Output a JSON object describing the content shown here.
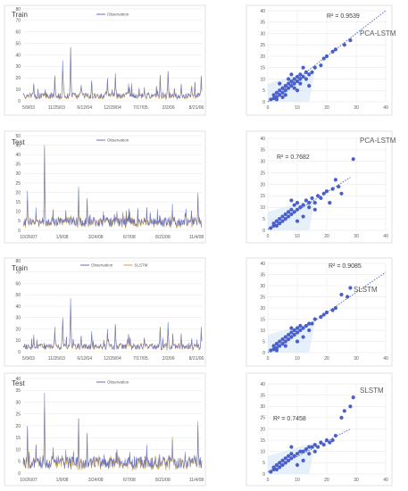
{
  "colors": {
    "observation": "#5b6fd6",
    "model": "#d9a23a",
    "scatter": "#4a5fc9",
    "trend": "#4a5fc9",
    "frame": "#d9d9d9",
    "grid": "#e6e6e6"
  },
  "chart_data": [
    {
      "type": "line",
      "title": "Train",
      "legend": [
        "Observation"
      ],
      "x_tick_labels": [
        "5/9/03",
        "11/25/03",
        "6/12/04",
        "12/29/04",
        "7/17/05",
        "2/2/06",
        "8/21/06"
      ],
      "y_ticks": [
        0,
        10,
        20,
        30,
        40,
        50,
        60,
        70,
        80
      ],
      "ylim": [
        0,
        80
      ],
      "n_points": 340,
      "peaks": [
        [
          20,
          15
        ],
        [
          60,
          22
        ],
        [
          75,
          35
        ],
        [
          90,
          46
        ],
        [
          110,
          14
        ],
        [
          130,
          18
        ],
        [
          160,
          20
        ],
        [
          175,
          24
        ],
        [
          200,
          15
        ],
        [
          230,
          12
        ],
        [
          260,
          22
        ],
        [
          275,
          26
        ],
        [
          300,
          15
        ],
        [
          320,
          12
        ],
        [
          338,
          22
        ]
      ],
      "baseline": [
        2,
        7
      ]
    },
    {
      "type": "line",
      "title": "Test",
      "legend": [
        "Observation"
      ],
      "x_tick_labels": [
        "10/26/07",
        "1/9/08",
        "3/24/08",
        "6/7/08",
        "8/21/08",
        "11/4/08"
      ],
      "y_ticks": [
        0,
        5,
        10,
        15,
        20,
        25,
        30,
        35,
        40,
        45,
        50
      ],
      "ylim": [
        0,
        50
      ],
      "n_points": 420,
      "peaks": [
        [
          10,
          21
        ],
        [
          30,
          12
        ],
        [
          50,
          45
        ],
        [
          70,
          11
        ],
        [
          100,
          10
        ],
        [
          130,
          23
        ],
        [
          150,
          17
        ],
        [
          190,
          8
        ],
        [
          220,
          10
        ],
        [
          250,
          9
        ],
        [
          290,
          12
        ],
        [
          320,
          8
        ],
        [
          350,
          14
        ],
        [
          380,
          9
        ],
        [
          410,
          20
        ]
      ],
      "baseline": [
        2,
        7
      ]
    },
    {
      "type": "line",
      "title": "Train",
      "legend": [
        "Observation",
        "SLSTM"
      ],
      "x_tick_labels": [
        "5/9/03",
        "11/25/03",
        "6/12/04",
        "12/29/04",
        "7/17/05",
        "2/2/06",
        "8/21/06"
      ],
      "y_ticks": [
        0,
        10,
        20,
        30,
        40,
        50,
        60,
        70,
        80
      ],
      "ylim": [
        0,
        80
      ],
      "n_points": 340,
      "peaks": [
        [
          20,
          15
        ],
        [
          60,
          22
        ],
        [
          75,
          30
        ],
        [
          90,
          47
        ],
        [
          110,
          14
        ],
        [
          130,
          18
        ],
        [
          160,
          20
        ],
        [
          175,
          24
        ],
        [
          200,
          15
        ],
        [
          230,
          12
        ],
        [
          260,
          22
        ],
        [
          275,
          26
        ],
        [
          300,
          15
        ],
        [
          320,
          12
        ],
        [
          338,
          22
        ]
      ],
      "baseline": [
        2,
        7
      ]
    },
    {
      "type": "line",
      "title": "Test",
      "legend": [
        "Observation"
      ],
      "x_tick_labels": [
        "10/26/07",
        "1/9/08",
        "3/24/08",
        "6/7/08",
        "8/21/08",
        "11/4/08"
      ],
      "y_ticks": [
        0,
        5,
        10,
        15,
        20,
        25,
        30,
        35,
        40
      ],
      "ylim": [
        0,
        40
      ],
      "n_points": 420,
      "peaks": [
        [
          10,
          20
        ],
        [
          30,
          12
        ],
        [
          50,
          34
        ],
        [
          70,
          11
        ],
        [
          100,
          10
        ],
        [
          130,
          23
        ],
        [
          150,
          17
        ],
        [
          190,
          8
        ],
        [
          220,
          10
        ],
        [
          250,
          9
        ],
        [
          290,
          12
        ],
        [
          320,
          8
        ],
        [
          350,
          14
        ],
        [
          380,
          9
        ],
        [
          410,
          20
        ]
      ],
      "baseline": [
        2,
        7
      ]
    },
    {
      "type": "scatter",
      "annotation": "R² = 0.9539",
      "model_label": "PCA-LSTM",
      "x_ticks": [
        0,
        10,
        20,
        30,
        40
      ],
      "y_ticks": [
        0,
        5,
        10,
        15,
        20,
        25,
        30,
        35,
        40
      ],
      "xlim": [
        0,
        40
      ],
      "ylim": [
        0,
        40
      ],
      "trend": [
        [
          0,
          0
        ],
        [
          40,
          40
        ]
      ],
      "points": [
        [
          1,
          1
        ],
        [
          2,
          1.5
        ],
        [
          2,
          3
        ],
        [
          3,
          2
        ],
        [
          3,
          4
        ],
        [
          4,
          3
        ],
        [
          4,
          5
        ],
        [
          5,
          4
        ],
        [
          5,
          6
        ],
        [
          6,
          5
        ],
        [
          6,
          7
        ],
        [
          7,
          6
        ],
        [
          7,
          8
        ],
        [
          8,
          7
        ],
        [
          8,
          9
        ],
        [
          9,
          8
        ],
        [
          9,
          10
        ],
        [
          10,
          9
        ],
        [
          10,
          11
        ],
        [
          11,
          10
        ],
        [
          11,
          12
        ],
        [
          12,
          11
        ],
        [
          13,
          13
        ],
        [
          14,
          12
        ],
        [
          15,
          13
        ],
        [
          12,
          15
        ],
        [
          14,
          7
        ],
        [
          10,
          5
        ],
        [
          8,
          12
        ],
        [
          16,
          15
        ],
        [
          18,
          16
        ],
        [
          19,
          19
        ],
        [
          20,
          20
        ],
        [
          22,
          22
        ],
        [
          23,
          23
        ],
        [
          26,
          25
        ],
        [
          28,
          27
        ],
        [
          9,
          6
        ],
        [
          6,
          3
        ],
        [
          3,
          1
        ],
        [
          5,
          2
        ],
        [
          4,
          8
        ],
        [
          7,
          10
        ],
        [
          11,
          8
        ],
        [
          13,
          10
        ]
      ]
    },
    {
      "type": "scatter",
      "annotation": "R² = 0.7682",
      "model_label": "PCA-LSTM",
      "x_ticks": [
        0,
        10,
        20,
        30,
        40
      ],
      "y_ticks": [
        0,
        5,
        10,
        15,
        20,
        25,
        30,
        35,
        40
      ],
      "xlim": [
        0,
        40
      ],
      "ylim": [
        0,
        40
      ],
      "trend": [
        [
          0,
          0.5
        ],
        [
          28,
          23
        ]
      ],
      "points": [
        [
          1,
          1
        ],
        [
          2,
          2
        ],
        [
          2,
          3
        ],
        [
          3,
          2
        ],
        [
          3,
          4
        ],
        [
          4,
          3
        ],
        [
          4,
          5
        ],
        [
          5,
          4
        ],
        [
          5,
          6
        ],
        [
          6,
          5
        ],
        [
          6,
          7
        ],
        [
          7,
          6
        ],
        [
          7,
          8
        ],
        [
          8,
          7
        ],
        [
          8,
          9
        ],
        [
          9,
          8
        ],
        [
          9,
          11
        ],
        [
          10,
          9
        ],
        [
          10,
          12
        ],
        [
          11,
          10
        ],
        [
          12,
          11
        ],
        [
          13,
          13
        ],
        [
          14,
          12
        ],
        [
          15,
          14
        ],
        [
          16,
          12
        ],
        [
          17,
          15
        ],
        [
          18,
          14
        ],
        [
          19,
          16
        ],
        [
          20,
          17
        ],
        [
          21,
          12
        ],
        [
          22,
          18
        ],
        [
          23,
          22
        ],
        [
          24,
          19
        ],
        [
          25,
          16
        ],
        [
          29,
          31
        ],
        [
          12,
          6
        ],
        [
          10,
          4
        ],
        [
          8,
          13
        ],
        [
          14,
          10
        ],
        [
          16,
          9
        ]
      ]
    },
    {
      "type": "scatter",
      "annotation": "R² = 0.9085",
      "model_label": "SLSTM",
      "x_ticks": [
        0,
        10,
        20,
        30,
        40
      ],
      "y_ticks": [
        0,
        5,
        10,
        15,
        20,
        25,
        30,
        35,
        40
      ],
      "xlim": [
        0,
        40
      ],
      "ylim": [
        0,
        40
      ],
      "trend": [
        [
          0,
          0
        ],
        [
          40,
          36
        ]
      ],
      "points": [
        [
          1,
          1
        ],
        [
          2,
          1.5
        ],
        [
          2,
          3
        ],
        [
          3,
          2
        ],
        [
          3,
          4
        ],
        [
          4,
          3
        ],
        [
          4,
          5
        ],
        [
          5,
          4
        ],
        [
          5,
          6
        ],
        [
          6,
          5
        ],
        [
          6,
          7
        ],
        [
          7,
          6
        ],
        [
          7,
          8
        ],
        [
          8,
          7
        ],
        [
          8,
          9
        ],
        [
          9,
          8
        ],
        [
          9,
          10
        ],
        [
          10,
          9
        ],
        [
          10,
          11
        ],
        [
          11,
          10
        ],
        [
          11,
          12
        ],
        [
          12,
          11
        ],
        [
          13,
          12
        ],
        [
          14,
          13
        ],
        [
          15,
          13
        ],
        [
          16,
          15
        ],
        [
          18,
          16
        ],
        [
          19,
          17
        ],
        [
          20,
          18
        ],
        [
          22,
          19
        ],
        [
          23,
          20
        ],
        [
          25,
          26
        ],
        [
          27,
          25
        ],
        [
          28,
          29
        ],
        [
          10,
          5
        ],
        [
          12,
          7
        ],
        [
          8,
          11
        ],
        [
          6,
          3
        ],
        [
          14,
          10
        ],
        [
          3,
          1
        ]
      ]
    },
    {
      "type": "scatter",
      "annotation": "R² = 0.7458",
      "model_label": "SLSTM",
      "x_ticks": [
        0,
        10,
        20,
        30,
        40
      ],
      "y_ticks": [
        0,
        5,
        10,
        15,
        20,
        25,
        30,
        35,
        40
      ],
      "xlim": [
        0,
        40
      ],
      "ylim": [
        0,
        40
      ],
      "trend": [
        [
          0,
          1
        ],
        [
          28,
          20
        ]
      ],
      "points": [
        [
          1,
          1
        ],
        [
          2,
          2
        ],
        [
          2,
          3
        ],
        [
          3,
          2
        ],
        [
          3,
          4
        ],
        [
          4,
          3
        ],
        [
          4,
          5
        ],
        [
          5,
          4
        ],
        [
          5,
          6
        ],
        [
          6,
          5
        ],
        [
          6,
          7
        ],
        [
          7,
          6
        ],
        [
          7,
          8
        ],
        [
          8,
          7
        ],
        [
          8,
          9
        ],
        [
          9,
          8
        ],
        [
          10,
          9
        ],
        [
          11,
          10
        ],
        [
          12,
          10
        ],
        [
          13,
          11
        ],
        [
          14,
          12
        ],
        [
          15,
          12
        ],
        [
          16,
          13
        ],
        [
          17,
          12
        ],
        [
          18,
          14
        ],
        [
          19,
          13
        ],
        [
          20,
          15
        ],
        [
          21,
          14
        ],
        [
          22,
          15
        ],
        [
          23,
          17
        ],
        [
          25,
          25
        ],
        [
          26,
          28
        ],
        [
          28,
          30
        ],
        [
          29,
          34
        ],
        [
          12,
          6
        ],
        [
          10,
          4
        ],
        [
          8,
          12
        ],
        [
          14,
          9
        ],
        [
          16,
          10
        ]
      ]
    }
  ]
}
